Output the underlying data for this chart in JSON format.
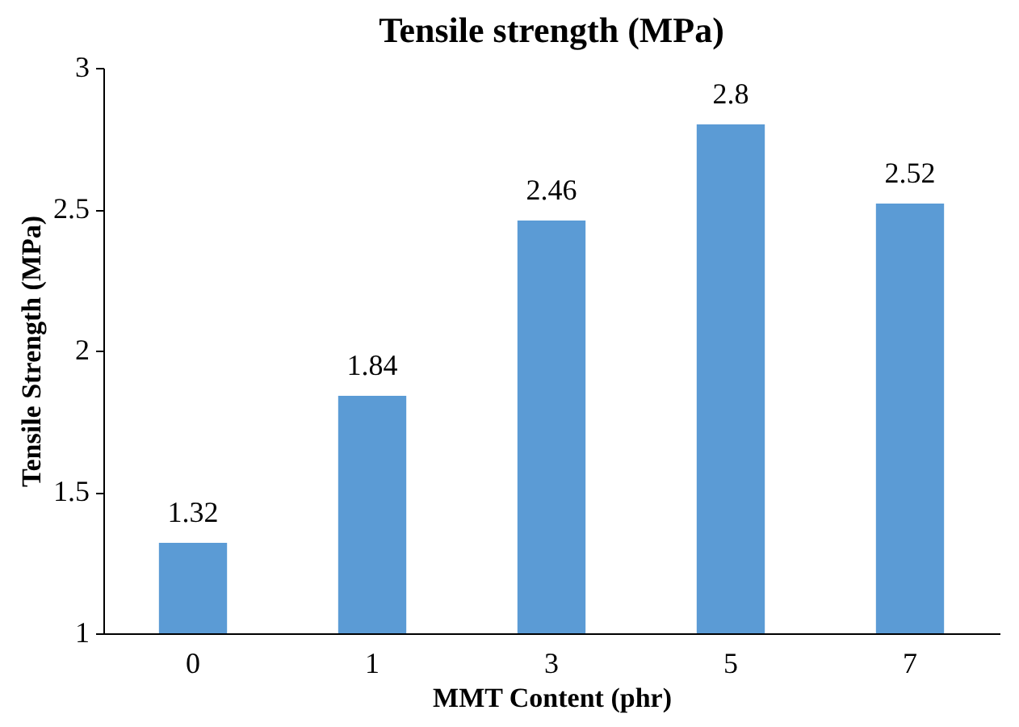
{
  "chart_data": {
    "type": "bar",
    "title": "Tensile strength (MPa)",
    "xlabel": "MMT Content (phr)",
    "ylabel": "Tensile Strength (MPa)",
    "categories": [
      "0",
      "1",
      "3",
      "5",
      "7"
    ],
    "values": [
      1.32,
      1.84,
      2.46,
      2.8,
      2.52
    ],
    "color": "#5b9bd5",
    "ylim": [
      1,
      3
    ],
    "yticks": [
      1,
      1.5,
      2,
      2.5,
      3
    ],
    "data_labels": true
  }
}
